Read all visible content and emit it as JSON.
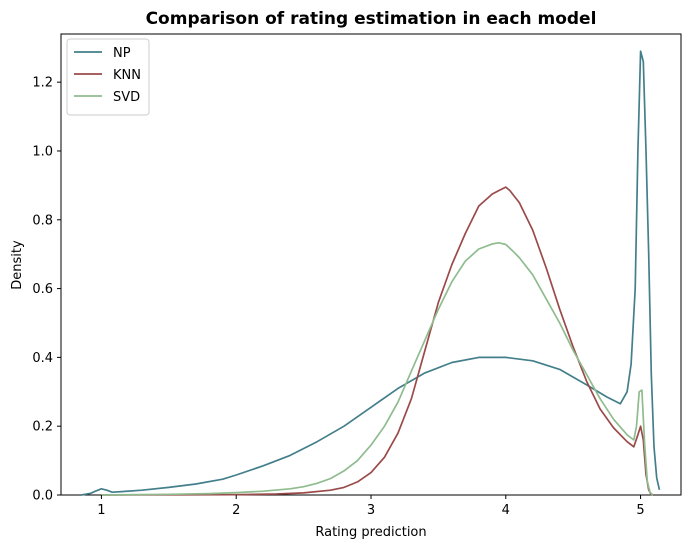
{
  "chart_data": {
    "type": "line",
    "title": "Comparison of rating estimation in each model",
    "xlabel": "Rating prediction",
    "ylabel": "Density",
    "xlim": [
      0.7,
      5.3
    ],
    "ylim": [
      0,
      1.34
    ],
    "x_ticks": [
      1,
      2,
      3,
      4,
      5
    ],
    "x_tick_labels": [
      "1",
      "2",
      "3",
      "4",
      "5"
    ],
    "y_ticks": [
      0.0,
      0.2,
      0.4,
      0.6,
      0.8,
      1.0,
      1.2
    ],
    "y_tick_labels": [
      "0.0",
      "0.2",
      "0.4",
      "0.6",
      "0.8",
      "1.0",
      "1.2"
    ],
    "grid": false,
    "legend_position": "upper-left",
    "series": [
      {
        "name": "NP",
        "color": "#437f8b",
        "points": [
          [
            0.85,
            0.0
          ],
          [
            0.92,
            0.005
          ],
          [
            0.96,
            0.012
          ],
          [
            1.0,
            0.018
          ],
          [
            1.04,
            0.014
          ],
          [
            1.08,
            0.008
          ],
          [
            1.15,
            0.01
          ],
          [
            1.3,
            0.014
          ],
          [
            1.5,
            0.022
          ],
          [
            1.7,
            0.032
          ],
          [
            1.9,
            0.046
          ],
          [
            2.0,
            0.058
          ],
          [
            2.2,
            0.085
          ],
          [
            2.4,
            0.115
          ],
          [
            2.6,
            0.155
          ],
          [
            2.8,
            0.2
          ],
          [
            3.0,
            0.255
          ],
          [
            3.2,
            0.31
          ],
          [
            3.4,
            0.355
          ],
          [
            3.6,
            0.385
          ],
          [
            3.8,
            0.4
          ],
          [
            4.0,
            0.4
          ],
          [
            4.2,
            0.39
          ],
          [
            4.4,
            0.365
          ],
          [
            4.6,
            0.32
          ],
          [
            4.75,
            0.285
          ],
          [
            4.85,
            0.265
          ],
          [
            4.9,
            0.3
          ],
          [
            4.93,
            0.38
          ],
          [
            4.96,
            0.6
          ],
          [
            4.98,
            1.0
          ],
          [
            5.0,
            1.29
          ],
          [
            5.02,
            1.26
          ],
          [
            5.04,
            1.0
          ],
          [
            5.06,
            0.7
          ],
          [
            5.08,
            0.35
          ],
          [
            5.1,
            0.14
          ],
          [
            5.12,
            0.05
          ],
          [
            5.14,
            0.015
          ]
        ]
      },
      {
        "name": "KNN",
        "color": "#9b4a4a",
        "points": [
          [
            1.0,
            0.0
          ],
          [
            2.0,
            0.001
          ],
          [
            2.3,
            0.003
          ],
          [
            2.5,
            0.006
          ],
          [
            2.7,
            0.014
          ],
          [
            2.8,
            0.022
          ],
          [
            2.9,
            0.038
          ],
          [
            3.0,
            0.065
          ],
          [
            3.1,
            0.11
          ],
          [
            3.2,
            0.18
          ],
          [
            3.3,
            0.28
          ],
          [
            3.4,
            0.42
          ],
          [
            3.5,
            0.56
          ],
          [
            3.6,
            0.67
          ],
          [
            3.7,
            0.76
          ],
          [
            3.8,
            0.84
          ],
          [
            3.9,
            0.875
          ],
          [
            3.95,
            0.885
          ],
          [
            4.0,
            0.895
          ],
          [
            4.03,
            0.885
          ],
          [
            4.1,
            0.85
          ],
          [
            4.2,
            0.77
          ],
          [
            4.3,
            0.66
          ],
          [
            4.4,
            0.54
          ],
          [
            4.5,
            0.43
          ],
          [
            4.6,
            0.33
          ],
          [
            4.7,
            0.25
          ],
          [
            4.8,
            0.195
          ],
          [
            4.9,
            0.155
          ],
          [
            4.95,
            0.14
          ],
          [
            4.98,
            0.175
          ],
          [
            5.0,
            0.2
          ],
          [
            5.02,
            0.16
          ],
          [
            5.04,
            0.06
          ],
          [
            5.06,
            0.015
          ],
          [
            5.08,
            0.0
          ]
        ]
      },
      {
        "name": "SVD",
        "color": "#8fbc8f",
        "points": [
          [
            1.0,
            0.0
          ],
          [
            1.5,
            0.002
          ],
          [
            1.8,
            0.004
          ],
          [
            2.0,
            0.007
          ],
          [
            2.2,
            0.011
          ],
          [
            2.4,
            0.018
          ],
          [
            2.5,
            0.024
          ],
          [
            2.6,
            0.034
          ],
          [
            2.7,
            0.048
          ],
          [
            2.8,
            0.07
          ],
          [
            2.9,
            0.1
          ],
          [
            3.0,
            0.145
          ],
          [
            3.1,
            0.2
          ],
          [
            3.2,
            0.27
          ],
          [
            3.3,
            0.36
          ],
          [
            3.4,
            0.45
          ],
          [
            3.5,
            0.54
          ],
          [
            3.6,
            0.62
          ],
          [
            3.7,
            0.68
          ],
          [
            3.8,
            0.715
          ],
          [
            3.9,
            0.73
          ],
          [
            3.95,
            0.733
          ],
          [
            4.0,
            0.728
          ],
          [
            4.05,
            0.71
          ],
          [
            4.1,
            0.69
          ],
          [
            4.2,
            0.64
          ],
          [
            4.3,
            0.57
          ],
          [
            4.4,
            0.5
          ],
          [
            4.5,
            0.42
          ],
          [
            4.6,
            0.35
          ],
          [
            4.7,
            0.28
          ],
          [
            4.8,
            0.22
          ],
          [
            4.9,
            0.175
          ],
          [
            4.95,
            0.16
          ],
          [
            4.97,
            0.2
          ],
          [
            4.99,
            0.3
          ],
          [
            5.01,
            0.305
          ],
          [
            5.03,
            0.15
          ],
          [
            5.05,
            0.04
          ],
          [
            5.07,
            0.008
          ],
          [
            5.09,
            0.0
          ]
        ]
      }
    ]
  }
}
